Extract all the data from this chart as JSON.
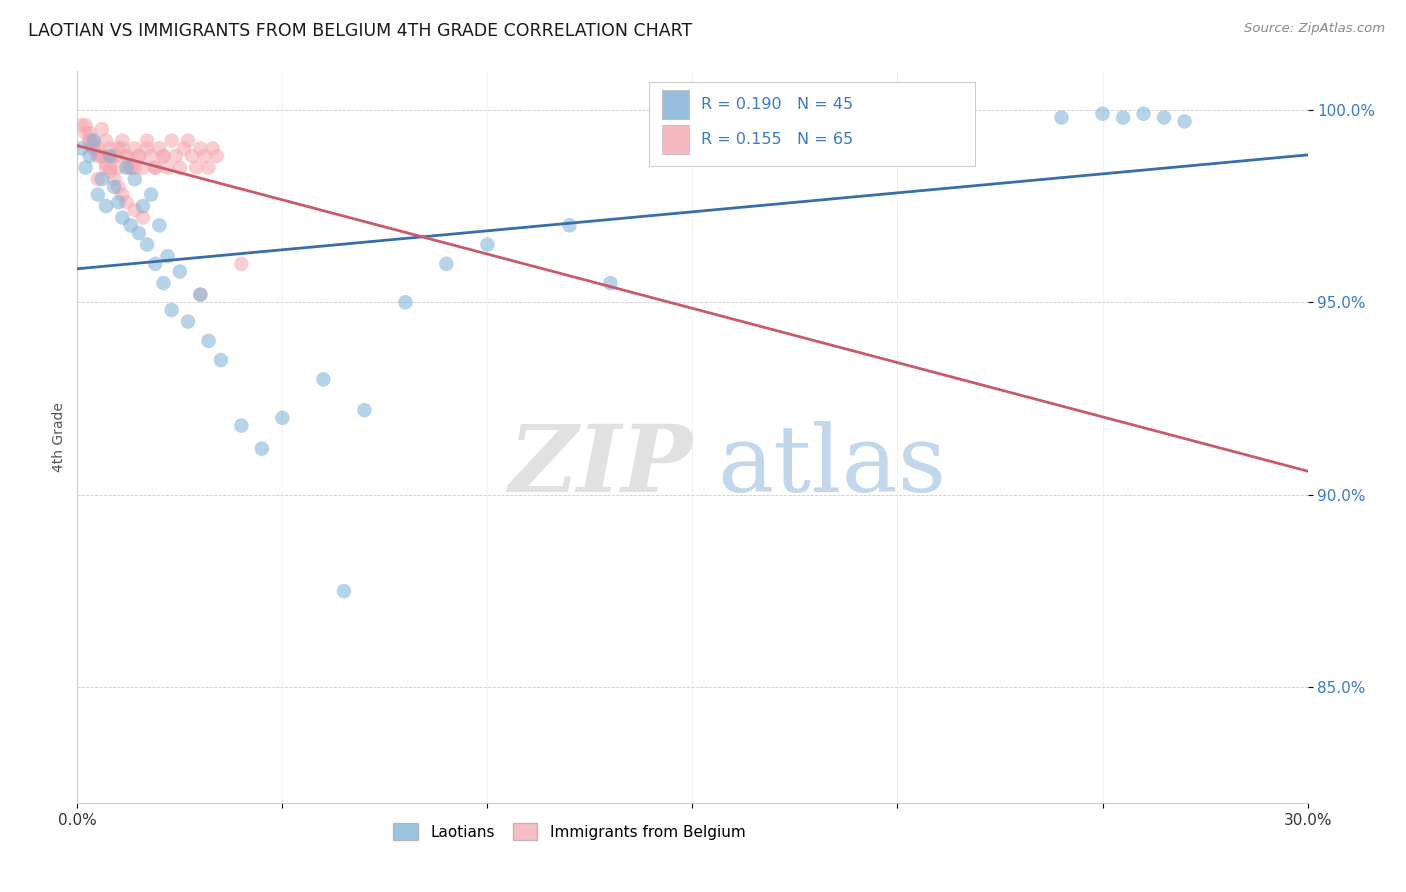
{
  "title": "LAOTIAN VS IMMIGRANTS FROM BELGIUM 4TH GRADE CORRELATION CHART",
  "source": "Source: ZipAtlas.com",
  "ylabel": "4th Grade",
  "xlim": [
    0.0,
    0.3
  ],
  "ylim": [
    0.82,
    1.01
  ],
  "xticks": [
    0.0,
    0.05,
    0.1,
    0.15,
    0.2,
    0.25,
    0.3
  ],
  "xtick_labels": [
    "0.0%",
    "",
    "",
    "",
    "",
    "",
    "30.0%"
  ],
  "yticks": [
    0.85,
    0.9,
    0.95,
    1.0
  ],
  "ytick_labels": [
    "85.0%",
    "90.0%",
    "95.0%",
    "100.0%"
  ],
  "legend_labels": [
    "Laotians",
    "Immigrants from Belgium"
  ],
  "laotians_color": "#7BAFD4",
  "belgium_color": "#F4A7B0",
  "trendline_laotians_color": "#3A6EA8",
  "trendline_belgium_color": "#C85A6A",
  "laotians_x": [
    0.001,
    0.002,
    0.003,
    0.004,
    0.005,
    0.006,
    0.007,
    0.008,
    0.009,
    0.01,
    0.011,
    0.012,
    0.013,
    0.014,
    0.015,
    0.016,
    0.017,
    0.018,
    0.019,
    0.02,
    0.021,
    0.022,
    0.023,
    0.025,
    0.027,
    0.03,
    0.032,
    0.035,
    0.04,
    0.045,
    0.05,
    0.06,
    0.065,
    0.07,
    0.08,
    0.09,
    0.1,
    0.12,
    0.13,
    0.24,
    0.25,
    0.255,
    0.26,
    0.265,
    0.27
  ],
  "laotians_y": [
    0.99,
    0.985,
    0.988,
    0.992,
    0.978,
    0.982,
    0.975,
    0.988,
    0.98,
    0.976,
    0.972,
    0.985,
    0.97,
    0.982,
    0.968,
    0.975,
    0.965,
    0.978,
    0.96,
    0.97,
    0.955,
    0.962,
    0.948,
    0.958,
    0.945,
    0.952,
    0.94,
    0.935,
    0.918,
    0.912,
    0.92,
    0.93,
    0.875,
    0.922,
    0.95,
    0.96,
    0.965,
    0.97,
    0.955,
    0.998,
    0.999,
    0.998,
    0.999,
    0.998,
    0.997
  ],
  "belgium_x": [
    0.001,
    0.002,
    0.003,
    0.004,
    0.005,
    0.006,
    0.007,
    0.008,
    0.009,
    0.01,
    0.011,
    0.012,
    0.013,
    0.014,
    0.015,
    0.016,
    0.017,
    0.018,
    0.019,
    0.02,
    0.021,
    0.022,
    0.023,
    0.024,
    0.025,
    0.026,
    0.027,
    0.028,
    0.029,
    0.03,
    0.031,
    0.032,
    0.033,
    0.034,
    0.005,
    0.007,
    0.009,
    0.011,
    0.013,
    0.015,
    0.017,
    0.019,
    0.021,
    0.003,
    0.004,
    0.006,
    0.008,
    0.01,
    0.012,
    0.014,
    0.002,
    0.003,
    0.004,
    0.005,
    0.006,
    0.007,
    0.008,
    0.009,
    0.01,
    0.011,
    0.012,
    0.014,
    0.016,
    0.03,
    0.04
  ],
  "belgium_y": [
    0.996,
    0.994,
    0.992,
    0.99,
    0.988,
    0.995,
    0.992,
    0.99,
    0.988,
    0.985,
    0.992,
    0.988,
    0.985,
    0.99,
    0.988,
    0.985,
    0.992,
    0.988,
    0.985,
    0.99,
    0.988,
    0.985,
    0.992,
    0.988,
    0.985,
    0.99,
    0.992,
    0.988,
    0.985,
    0.99,
    0.988,
    0.985,
    0.99,
    0.988,
    0.982,
    0.985,
    0.988,
    0.99,
    0.985,
    0.988,
    0.99,
    0.985,
    0.988,
    0.992,
    0.99,
    0.988,
    0.985,
    0.99,
    0.988,
    0.985,
    0.996,
    0.994,
    0.992,
    0.99,
    0.988,
    0.986,
    0.984,
    0.982,
    0.98,
    0.978,
    0.976,
    0.974,
    0.972,
    0.952,
    0.96
  ]
}
